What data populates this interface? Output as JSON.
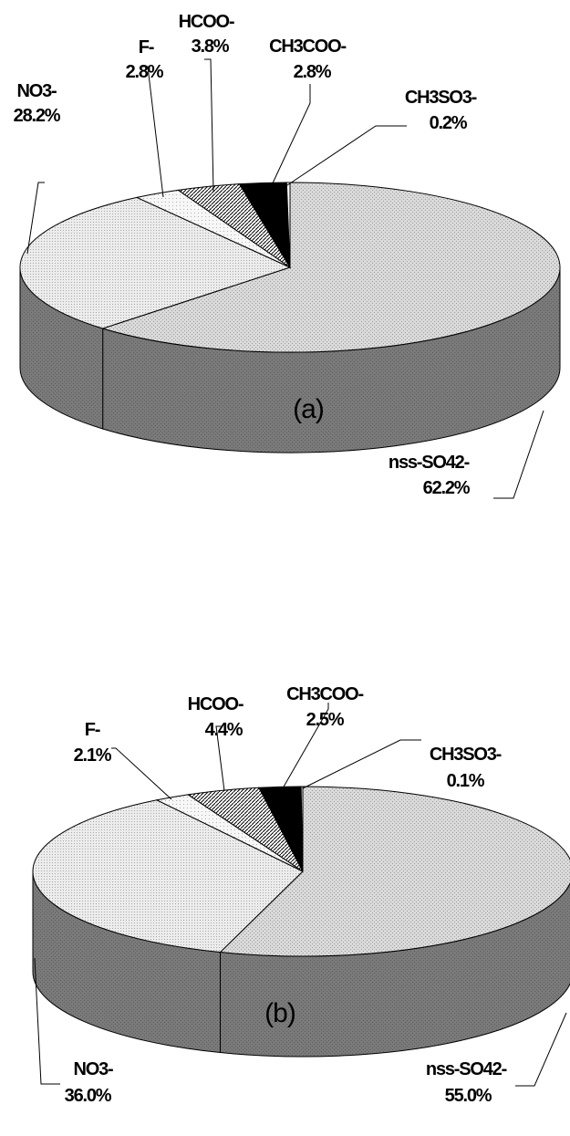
{
  "chart_data": [
    {
      "type": "pie",
      "panel_label": "(a)",
      "slices": [
        {
          "name": "nss-SO42-",
          "value": 62.2,
          "label": "62.2%"
        },
        {
          "name": "NO3-",
          "value": 28.2,
          "label": "28.2%"
        },
        {
          "name": "F-",
          "value": 2.8,
          "label": "2.8%"
        },
        {
          "name": "HCOO-",
          "value": 3.8,
          "label": "3.8%"
        },
        {
          "name": "CH3COO-",
          "value": 2.8,
          "label": "2.8%"
        },
        {
          "name": "CH3SO3-",
          "value": 0.2,
          "label": "0.2%"
        }
      ]
    },
    {
      "type": "pie",
      "panel_label": "(b)",
      "slices": [
        {
          "name": "nss-SO42-",
          "value": 55.0,
          "label": "55.0%"
        },
        {
          "name": "NO3-",
          "value": 36.0,
          "label": "36.0%"
        },
        {
          "name": "F-",
          "value": 2.1,
          "label": "2.1%"
        },
        {
          "name": "HCOO-",
          "value": 4.4,
          "label": "4.4%"
        },
        {
          "name": "CH3COO-",
          "value": 2.5,
          "label": "2.5%"
        },
        {
          "name": "CH3SO3-",
          "value": 0.1,
          "label": "0.1%"
        }
      ]
    }
  ],
  "style": {
    "side_color": "#777777",
    "slice_colors": [
      "#d2d2d2",
      "#e8e8e8",
      "#f4f4f4",
      "#8a8a8a",
      "#000000",
      "#ffffff"
    ]
  }
}
